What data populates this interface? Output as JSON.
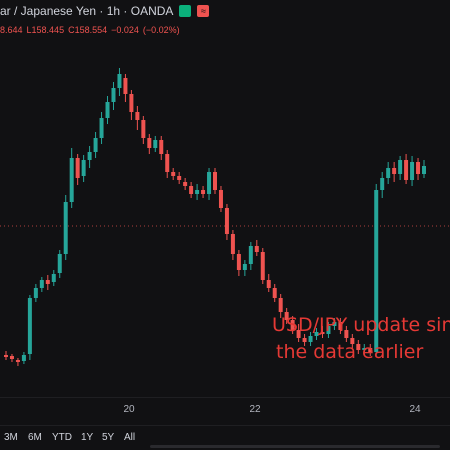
{
  "header": {
    "title": "ar / Japanese Yen · 1h · OANDA",
    "badge_green": "",
    "badge_red": "≈",
    "ohlc": [
      "8.644",
      "L158.445",
      "C158.554",
      "−0.024",
      "(−0.02%)"
    ]
  },
  "annotation": {
    "line1": "USD/JPY update sin",
    "line2": "the data earlier"
  },
  "time_axis": {
    "labels": [
      "20",
      "22",
      "24"
    ]
  },
  "range_buttons": [
    "3M",
    "6M",
    "YTD",
    "1Y",
    "5Y",
    "All"
  ],
  "colors": {
    "up": "#26a69a",
    "down": "#ef5350",
    "annotation": "#e53935",
    "dotted_line": "#ef5350"
  },
  "chart_data": {
    "type": "candlestick",
    "series": [
      {
        "o": 75,
        "c": 73,
        "h": 70,
        "l": 79
      },
      {
        "o": 74,
        "c": 71,
        "h": 68,
        "l": 76
      },
      {
        "o": 70,
        "c": 68,
        "h": 64,
        "l": 72
      },
      {
        "o": 69,
        "c": 75,
        "h": 66,
        "l": 78
      },
      {
        "o": 76,
        "c": 132,
        "h": 70,
        "l": 135
      },
      {
        "o": 132,
        "c": 142,
        "h": 128,
        "l": 146
      },
      {
        "o": 142,
        "c": 150,
        "h": 138,
        "l": 153
      },
      {
        "o": 150,
        "c": 146,
        "h": 140,
        "l": 155
      },
      {
        "o": 148,
        "c": 156,
        "h": 144,
        "l": 160
      },
      {
        "o": 157,
        "c": 176,
        "h": 152,
        "l": 180
      },
      {
        "o": 176,
        "c": 228,
        "h": 170,
        "l": 235
      },
      {
        "o": 228,
        "c": 272,
        "h": 222,
        "l": 282
      },
      {
        "o": 272,
        "c": 252,
        "h": 245,
        "l": 276
      },
      {
        "o": 254,
        "c": 270,
        "h": 248,
        "l": 275
      },
      {
        "o": 270,
        "c": 278,
        "h": 262,
        "l": 284
      },
      {
        "o": 278,
        "c": 292,
        "h": 272,
        "l": 298
      },
      {
        "o": 292,
        "c": 312,
        "h": 286,
        "l": 318
      },
      {
        "o": 312,
        "c": 328,
        "h": 306,
        "l": 334
      },
      {
        "o": 328,
        "c": 342,
        "h": 320,
        "l": 348
      },
      {
        "o": 342,
        "c": 356,
        "h": 334,
        "l": 362
      },
      {
        "o": 352,
        "c": 336,
        "h": 328,
        "l": 356
      },
      {
        "o": 336,
        "c": 318,
        "h": 310,
        "l": 340
      },
      {
        "o": 318,
        "c": 310,
        "h": 300,
        "l": 324
      },
      {
        "o": 310,
        "c": 292,
        "h": 286,
        "l": 314
      },
      {
        "o": 292,
        "c": 282,
        "h": 276,
        "l": 296
      },
      {
        "o": 282,
        "c": 290,
        "h": 278,
        "l": 294
      },
      {
        "o": 290,
        "c": 276,
        "h": 270,
        "l": 294
      },
      {
        "o": 276,
        "c": 258,
        "h": 252,
        "l": 280
      },
      {
        "o": 258,
        "c": 254,
        "h": 250,
        "l": 262
      },
      {
        "o": 254,
        "c": 250,
        "h": 246,
        "l": 258
      },
      {
        "o": 248,
        "c": 244,
        "h": 240,
        "l": 252
      },
      {
        "o": 244,
        "c": 236,
        "h": 232,
        "l": 248
      },
      {
        "o": 236,
        "c": 240,
        "h": 230,
        "l": 246
      },
      {
        "o": 240,
        "c": 236,
        "h": 232,
        "l": 244
      },
      {
        "o": 236,
        "c": 258,
        "h": 230,
        "l": 262
      },
      {
        "o": 258,
        "c": 240,
        "h": 236,
        "l": 262
      },
      {
        "o": 240,
        "c": 222,
        "h": 218,
        "l": 244
      },
      {
        "o": 222,
        "c": 196,
        "h": 190,
        "l": 226
      },
      {
        "o": 196,
        "c": 176,
        "h": 170,
        "l": 200
      },
      {
        "o": 176,
        "c": 160,
        "h": 154,
        "l": 180
      },
      {
        "o": 160,
        "c": 166,
        "h": 154,
        "l": 170
      },
      {
        "o": 166,
        "c": 184,
        "h": 160,
        "l": 188
      },
      {
        "o": 184,
        "c": 178,
        "h": 174,
        "l": 190
      },
      {
        "o": 178,
        "c": 150,
        "h": 146,
        "l": 182
      },
      {
        "o": 150,
        "c": 142,
        "h": 138,
        "l": 156
      },
      {
        "o": 142,
        "c": 132,
        "h": 128,
        "l": 146
      },
      {
        "o": 132,
        "c": 118,
        "h": 112,
        "l": 136
      },
      {
        "o": 118,
        "c": 110,
        "h": 106,
        "l": 122
      },
      {
        "o": 110,
        "c": 100,
        "h": 96,
        "l": 114
      },
      {
        "o": 100,
        "c": 92,
        "h": 88,
        "l": 106
      },
      {
        "o": 92,
        "c": 88,
        "h": 84,
        "l": 96
      },
      {
        "o": 88,
        "c": 94,
        "h": 84,
        "l": 98
      },
      {
        "o": 94,
        "c": 98,
        "h": 90,
        "l": 102
      },
      {
        "o": 98,
        "c": 96,
        "h": 92,
        "l": 104
      },
      {
        "o": 96,
        "c": 104,
        "h": 92,
        "l": 108
      },
      {
        "o": 104,
        "c": 108,
        "h": 100,
        "l": 112
      },
      {
        "o": 108,
        "c": 100,
        "h": 96,
        "l": 112
      },
      {
        "o": 100,
        "c": 92,
        "h": 88,
        "l": 104
      },
      {
        "o": 92,
        "c": 86,
        "h": 82,
        "l": 96
      },
      {
        "o": 86,
        "c": 80,
        "h": 76,
        "l": 90
      },
      {
        "o": 80,
        "c": 82,
        "h": 76,
        "l": 86
      },
      {
        "o": 82,
        "c": 78,
        "h": 74,
        "l": 86
      },
      {
        "o": 78,
        "c": 240,
        "h": 74,
        "l": 246
      },
      {
        "o": 240,
        "c": 252,
        "h": 232,
        "l": 258
      },
      {
        "o": 252,
        "c": 262,
        "h": 246,
        "l": 268
      },
      {
        "o": 262,
        "c": 256,
        "h": 248,
        "l": 268
      },
      {
        "o": 256,
        "c": 270,
        "h": 250,
        "l": 274
      },
      {
        "o": 270,
        "c": 250,
        "h": 246,
        "l": 276
      },
      {
        "o": 250,
        "c": 268,
        "h": 244,
        "l": 274
      },
      {
        "o": 268,
        "c": 256,
        "h": 250,
        "l": 272
      },
      {
        "o": 256,
        "c": 264,
        "h": 252,
        "l": 270
      }
    ]
  }
}
